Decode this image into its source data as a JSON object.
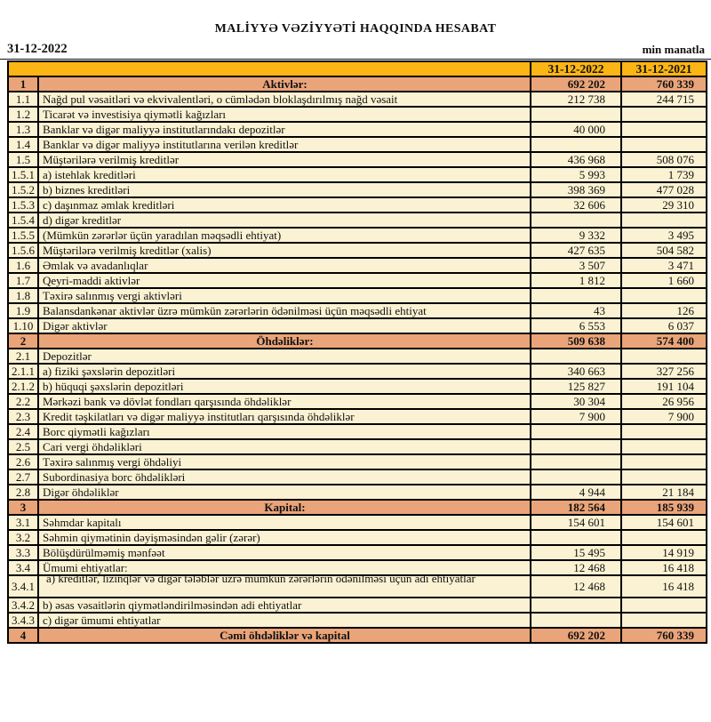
{
  "page": {
    "title": "MALİYYƏ VƏZİYYƏTİ HAQQINDA HESABAT",
    "date": "31-12-2022",
    "unit": "min manatla"
  },
  "colors": {
    "header_bg": "#FBB515",
    "section_bg": "#EAA479",
    "row_bg": "#FBF2D3",
    "border": "#000000"
  },
  "table": {
    "col2022": "31-12-2022",
    "col2021": "31-12-2021",
    "rows": [
      {
        "no": "1",
        "label": "Aktivlər:",
        "v2022": "692 202",
        "v2021": "760 339",
        "type": "section"
      },
      {
        "no": "1.1",
        "label": "Nağd pul vəsaitləri və  ekvivalentləri, o cümlədən bloklaşdırılmış nağd vəsait",
        "v2022": "212 738",
        "v2021": "244 715",
        "type": "data"
      },
      {
        "no": "1.2",
        "label": "Ticarət və investisiya qiymətli kağızları",
        "v2022": "",
        "v2021": "",
        "type": "data"
      },
      {
        "no": "1.3",
        "label": "Banklar və digər maliyyə institutlarındakı depozitlər",
        "v2022": "40 000",
        "v2021": "",
        "type": "data"
      },
      {
        "no": "1.4",
        "label": "Banklar və digər maliyyə institutlarına verilən kreditlər",
        "v2022": "",
        "v2021": "",
        "type": "data"
      },
      {
        "no": "1.5",
        "label": "Müştərilərə verilmiş kreditlər",
        "v2022": "436 968",
        "v2021": "508 076",
        "type": "data"
      },
      {
        "no": "1.5.1",
        "label": "a) istehlak kreditləri",
        "v2022": "5 993",
        "v2021": "1 739",
        "type": "data"
      },
      {
        "no": "1.5.2",
        "label": "b) biznes kreditləri",
        "v2022": "398 369",
        "v2021": "477 028",
        "type": "data"
      },
      {
        "no": "1.5.3",
        "label": "c) daşınmaz əmlak kreditləri",
        "v2022": "32 606",
        "v2021": "29 310",
        "type": "data"
      },
      {
        "no": "1.5.4",
        "label": "d) digər kreditlər",
        "v2022": "",
        "v2021": "",
        "type": "data"
      },
      {
        "no": "1.5.5",
        "label": "(Mümkün zərərlər üçün yaradılan məqsədli ehtiyat)",
        "v2022": "9 332",
        "v2021": "3 495",
        "type": "data"
      },
      {
        "no": "1.5.6",
        "label": "Müştərilərə verilmiş kreditlər (xalis)",
        "v2022": "427 635",
        "v2021": "504 582",
        "type": "data"
      },
      {
        "no": "1.6",
        "label": "Əmlak və avadanlıqlar",
        "v2022": "3 507",
        "v2021": "3 471",
        "type": "data"
      },
      {
        "no": "1.7",
        "label": "Qeyri-maddi aktivlər",
        "v2022": "1 812",
        "v2021": "1 660",
        "type": "data"
      },
      {
        "no": "1.8",
        "label": "Təxirə salınmış vergi aktivləri",
        "v2022": "",
        "v2021": "",
        "type": "data"
      },
      {
        "no": "1.9",
        "label": "Balansdankənar aktivlər üzrə mümkün zərərlərin ödənilməsi üçün məqsədli ehtiyat",
        "v2022": "43",
        "v2021": "126",
        "type": "data"
      },
      {
        "no": "1.10",
        "label": "Digər aktivlər",
        "v2022": "6 553",
        "v2021": "6 037",
        "type": "data"
      },
      {
        "no": "2",
        "label": "Öhdəliklər:",
        "v2022": "509 638",
        "v2021": "574 400",
        "type": "section"
      },
      {
        "no": "2.1",
        "label": "Depozitlər",
        "v2022": "",
        "v2021": "",
        "type": "data"
      },
      {
        "no": "2.1.1",
        "label": "a) fiziki şəxslərin depozitləri",
        "v2022": "340 663",
        "v2021": "327 256",
        "type": "data"
      },
      {
        "no": "2.1.2",
        "label": "b) hüquqi şəxslərin depozitləri",
        "v2022": "125 827",
        "v2021": "191 104",
        "type": "data"
      },
      {
        "no": "2.2",
        "label": "Mərkəzi bank və dövlət fondları qarşısında öhdəliklər",
        "v2022": "30 304",
        "v2021": "26 956",
        "type": "data"
      },
      {
        "no": "2.3",
        "label": "Kredit təşkilatları və digər maliyyə institutları qarşısında öhdəliklər",
        "v2022": "7 900",
        "v2021": "7 900",
        "type": "data"
      },
      {
        "no": "2.4",
        "label": "Borc qiymətli kağızları",
        "v2022": "",
        "v2021": "",
        "type": "data"
      },
      {
        "no": "2.5",
        "label": "Cari vergi öhdəlikləri",
        "v2022": "",
        "v2021": "",
        "type": "data"
      },
      {
        "no": "2.6",
        "label": "Təxirə salınmış vergi öhdəliyi",
        "v2022": "",
        "v2021": "",
        "type": "data"
      },
      {
        "no": "2.7",
        "label": "Subordinasiya borc öhdəlikləri",
        "v2022": "",
        "v2021": "",
        "type": "data"
      },
      {
        "no": "2.8",
        "label": "Digər öhdəliklər",
        "v2022": "4 944",
        "v2021": "21 184",
        "type": "data"
      },
      {
        "no": "3",
        "label": "Kapital:",
        "v2022": "182 564",
        "v2021": "185 939",
        "type": "section"
      },
      {
        "no": "3.1",
        "label": "Səhmdar kapitalı",
        "v2022": "154 601",
        "v2021": "154 601",
        "type": "data"
      },
      {
        "no": "3.2",
        "label": "Səhmin qiymətinin dəyişməsindən gəlir (zərər)",
        "v2022": "",
        "v2021": "",
        "type": "data"
      },
      {
        "no": "3.3",
        "label": "Bölüşdürülməmiş mənfəət",
        "v2022": "15 495",
        "v2021": "14 919",
        "type": "data"
      },
      {
        "no": "3.4",
        "label": "Ümumi ehtiyatlar:",
        "v2022": "12 468",
        "v2021": "16 418",
        "type": "data"
      },
      {
        "no": "3.4.1",
        "label": "a) kreditlər, lizinqlər və digər tələblər üzrə mümkün zərərlərin ödənilməsi üçün adi ehtiyatlar",
        "v2022": "12 468",
        "v2021": "16 418",
        "type": "clip"
      },
      {
        "no": "3.4.2",
        "label": "b) əsas vəsaitlərin qiymətləndirilməsindən adi ehtiyatlar",
        "v2022": "",
        "v2021": "",
        "type": "data"
      },
      {
        "no": "3.4.3",
        "label": "c) digər ümumi ehtiyatlar",
        "v2022": "",
        "v2021": "",
        "type": "data"
      },
      {
        "no": "4",
        "label": "Cəmi öhdəliklər və kapital",
        "v2022": "692 202",
        "v2021": "760 339",
        "type": "section"
      }
    ]
  }
}
